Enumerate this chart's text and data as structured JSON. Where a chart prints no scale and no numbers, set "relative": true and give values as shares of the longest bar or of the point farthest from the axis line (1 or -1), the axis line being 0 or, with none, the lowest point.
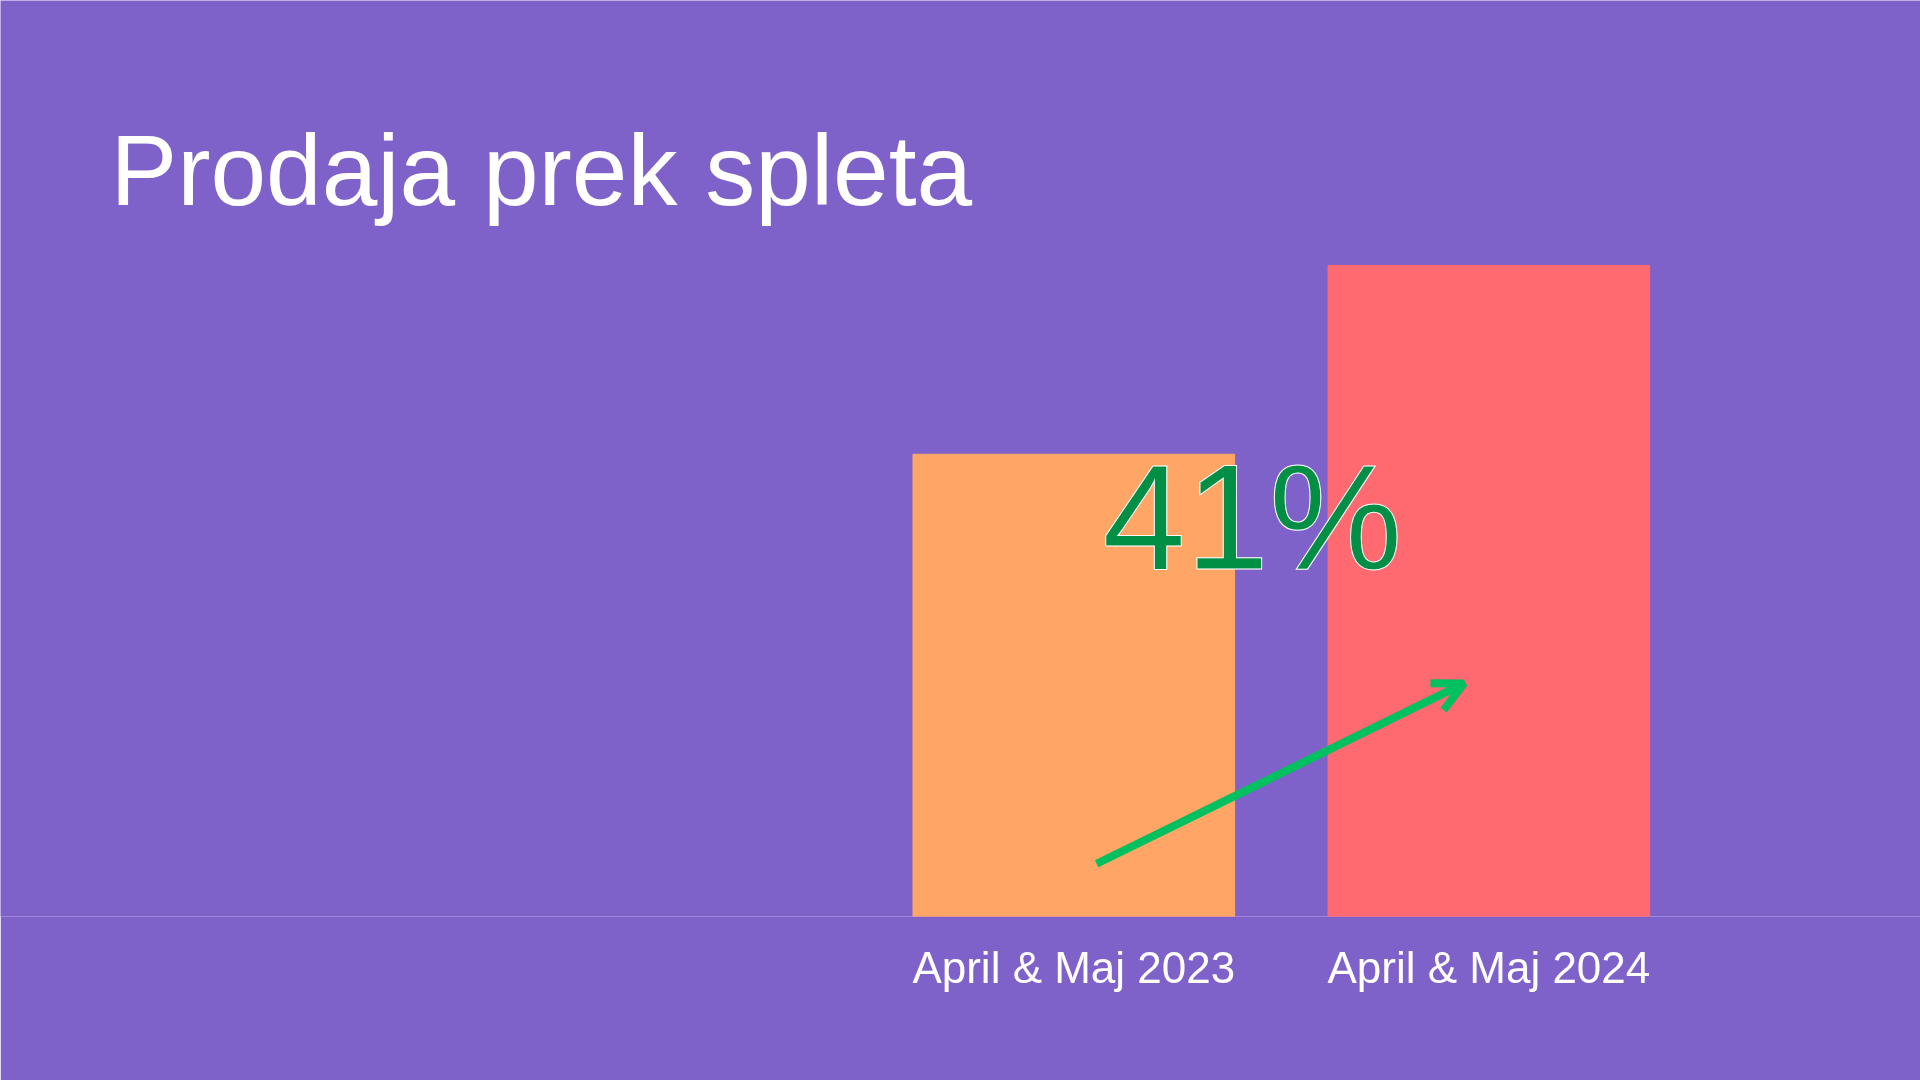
{
  "chart_data": {
    "type": "bar",
    "title": "Prodaja prek spleta",
    "categories": [
      "April & Maj 2023",
      "April & Maj 2024"
    ],
    "values": [
      0.71,
      1
    ],
    "colors": [
      "#ffa566",
      "#ff6970"
    ],
    "relative": true,
    "annotations": [
      "41%"
    ]
  }
}
